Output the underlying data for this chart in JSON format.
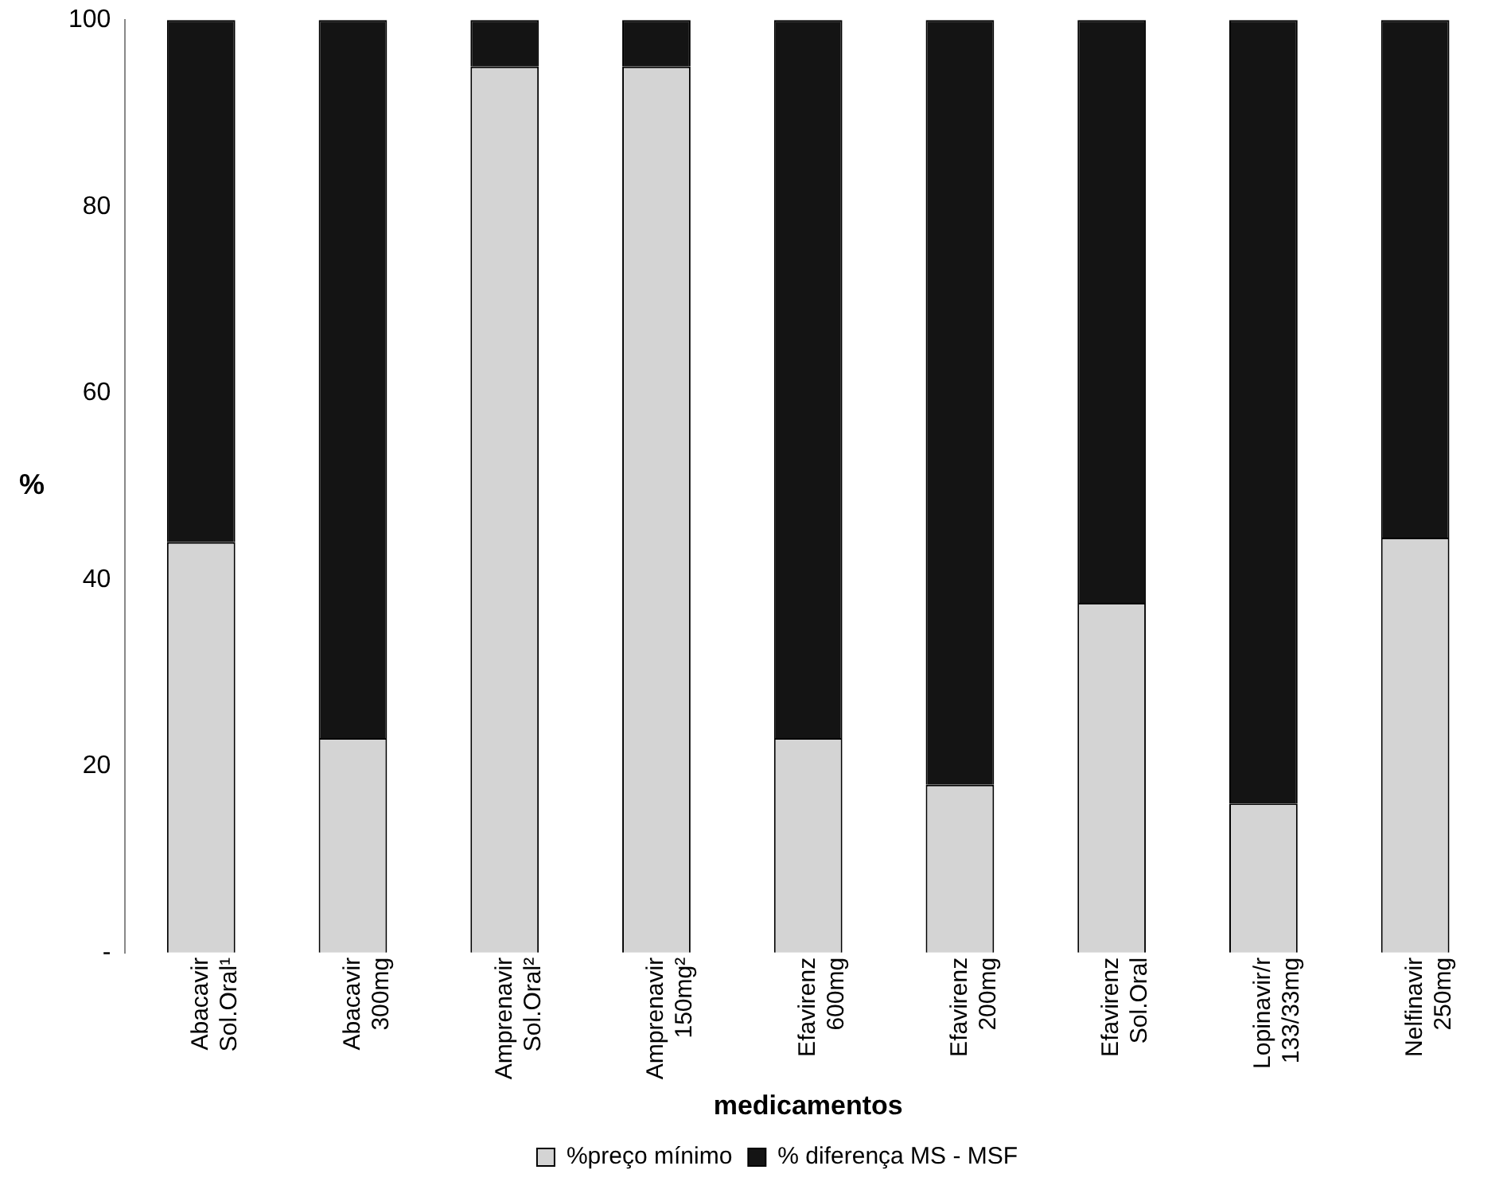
{
  "chart_data": {
    "type": "bar",
    "stacked": true,
    "xlabel": "medicamentos",
    "ylabel": "%",
    "categories": [
      "Abacavir\nSol.Oral¹",
      "Abacavir\n300mg",
      "Amprenavir\nSol.Oral²",
      "Amprenavir\n150mg²",
      "Efavirenz\n600mg",
      "Efavirenz\n200mg",
      "Efavirenz\nSol.Oral",
      "Lopinavir/r\n133/33mg",
      "Nelfinavir\n250mg"
    ],
    "series": [
      {
        "name": "%preço mínimo",
        "color": "#d4d4d4",
        "values": [
          44,
          23,
          95,
          95,
          23,
          18,
          37.5,
          16,
          44.5
        ]
      },
      {
        "name": "% diferença MS - MSF",
        "color": "#141414",
        "values": [
          56,
          77,
          5,
          5,
          77,
          82,
          62.5,
          84,
          55.5
        ]
      }
    ],
    "ylim": [
      0,
      100
    ],
    "yticks": [
      {
        "value": 0,
        "label": "-"
      },
      20,
      40,
      60,
      80,
      100
    ],
    "grid": false,
    "legend": "bottom"
  }
}
